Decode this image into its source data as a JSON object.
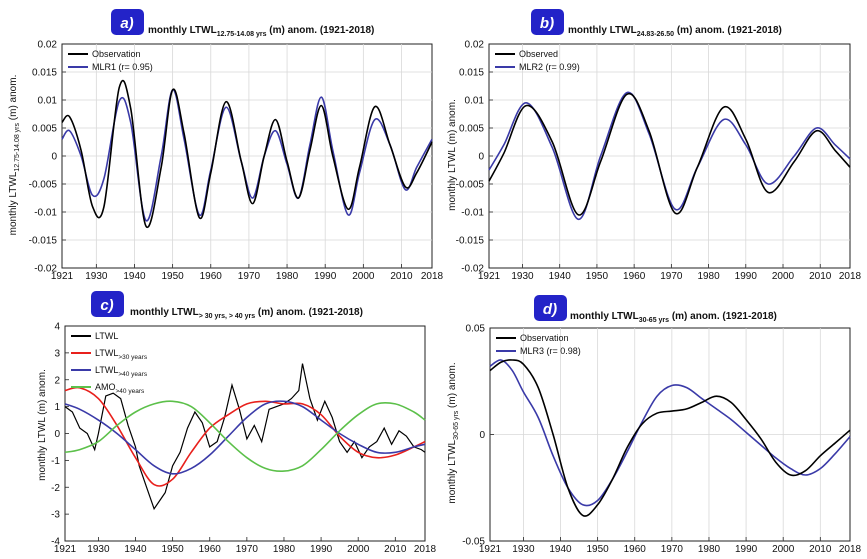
{
  "colors": {
    "black": "#000000",
    "blue": "#3a3aa8",
    "red": "#e8201c",
    "green": "#5cc04a",
    "badge": "#2323c8",
    "grid": "#d8d8d8"
  },
  "panels": [
    {
      "badge": "a)",
      "title_main": "monthly LTWL",
      "title_sub": "12.75-14.08 yrs",
      "title_tail": " (m) anom. (1921-2018)",
      "ylabel": "monthly LTWL",
      "ylabel_sub": "12.75-14.08 yrs",
      "ylabel_tail": " (m) anom."
    },
    {
      "badge": "b)",
      "title_main": "monthly LTWL",
      "title_sub": "24.83-26.50",
      "title_tail": " (m) anom. (1921-2018)",
      "ylabel": "monthly LTWL (m) anom.",
      "ylabel_sub": "",
      "ylabel_tail": ""
    },
    {
      "badge": "c)",
      "title_main": "monthly LTWL",
      "title_sub": "> 30 yrs, > 40 yrs",
      "title_tail": " (m) anom. (1921-2018)",
      "ylabel": "monthly LTWL (m) anom.",
      "ylabel_sub": "",
      "ylabel_tail": ""
    },
    {
      "badge": "d)",
      "title_main": "monthly LTWL",
      "title_sub": "30-65 yrs",
      "title_tail": " (m) anom. (1921-2018)",
      "ylabel": "monthly LTWL",
      "ylabel_sub": "30-65 yrs",
      "ylabel_tail": " (m) anom."
    }
  ],
  "chart_data": [
    {
      "type": "line",
      "xlim": [
        1921,
        2018
      ],
      "xticks": [
        "1921",
        "1930",
        "1940",
        "1950",
        "1960",
        "1970",
        "1980",
        "1990",
        "2000",
        "2010",
        "2018"
      ],
      "ylim": [
        -0.02,
        0.02
      ],
      "yticks": [
        "0.02",
        "0.015",
        "0.01",
        "0.005",
        "0",
        "-0.005",
        "-0.01",
        "-0.015",
        "-0.02"
      ],
      "grid": true,
      "legend_position": "top-left",
      "series": [
        {
          "name": "Observation",
          "color": "black",
          "x": [
            1921,
            1923,
            1926,
            1929,
            1932,
            1936,
            1939,
            1943,
            1947,
            1950,
            1953,
            1957,
            1960,
            1964,
            1968,
            1971,
            1974,
            1977,
            1980,
            1983,
            1986,
            1989,
            1992,
            1996,
            1999,
            2003,
            2007,
            2011,
            2014,
            2018
          ],
          "y": [
            0.006,
            0.007,
            0.001,
            -0.009,
            -0.009,
            0.0122,
            0.0085,
            -0.0125,
            -0.002,
            0.0118,
            0.004,
            -0.011,
            -0.003,
            0.0097,
            -0.001,
            -0.0085,
            0.0,
            0.0065,
            -0.001,
            -0.0075,
            0.001,
            0.009,
            0.0,
            -0.0095,
            -0.002,
            0.0088,
            0.002,
            -0.0055,
            -0.003,
            0.0025
          ]
        },
        {
          "name": "MLR1 (r= 0.95)",
          "color": "blue",
          "x": [
            1921,
            1923,
            1926,
            1929,
            1932,
            1936,
            1939,
            1943,
            1947,
            1950,
            1953,
            1957,
            1960,
            1964,
            1968,
            1971,
            1974,
            1977,
            1980,
            1983,
            1986,
            1989,
            1992,
            1996,
            1999,
            2003,
            2007,
            2011,
            2014,
            2018
          ],
          "y": [
            0.003,
            0.0045,
            0.0,
            -0.007,
            -0.004,
            0.0098,
            0.006,
            -0.0115,
            0.0,
            0.0118,
            0.003,
            -0.0105,
            -0.0025,
            0.0087,
            -0.001,
            -0.0075,
            0.0,
            0.0045,
            -0.0015,
            -0.0075,
            0.002,
            0.0105,
            0.001,
            -0.0105,
            -0.003,
            0.0065,
            0.002,
            -0.006,
            -0.002,
            0.003
          ]
        }
      ]
    },
    {
      "type": "line",
      "xlim": [
        1921,
        2018
      ],
      "xticks": [
        "1921",
        "1930",
        "1940",
        "1950",
        "1960",
        "1970",
        "1980",
        "1990",
        "2000",
        "2010",
        "2018"
      ],
      "ylim": [
        -0.02,
        0.02
      ],
      "yticks": [
        "0.02",
        "0.015",
        "0.01",
        "0.005",
        "0",
        "-0.005",
        "-0.01",
        "-0.015",
        "-0.02"
      ],
      "grid": true,
      "legend_position": "top-left",
      "series": [
        {
          "name": "Observed",
          "color": "black",
          "x": [
            1921,
            1925,
            1931,
            1938,
            1945,
            1951,
            1958,
            1964,
            1971,
            1977,
            1984,
            1990,
            1996,
            2003,
            2009,
            2014,
            2018
          ],
          "y": [
            -0.0045,
            0.0005,
            0.009,
            0.0025,
            -0.0105,
            -0.001,
            0.011,
            0.0045,
            -0.0102,
            -0.002,
            0.0087,
            0.003,
            -0.0065,
            -0.001,
            0.0045,
            0.001,
            -0.002
          ]
        },
        {
          "name": "MLR2 (r= 0.99)",
          "color": "blue",
          "x": [
            1921,
            1925,
            1931,
            1938,
            1945,
            1951,
            1958,
            1964,
            1971,
            1977,
            1984,
            1990,
            1996,
            2003,
            2009,
            2014,
            2018
          ],
          "y": [
            -0.0025,
            0.002,
            0.0095,
            0.0015,
            -0.0113,
            0.0,
            0.0113,
            0.004,
            -0.0095,
            -0.002,
            0.0065,
            0.002,
            -0.005,
            0.0,
            0.005,
            0.002,
            -0.0005
          ]
        }
      ]
    },
    {
      "type": "line",
      "xlim": [
        1921,
        2018
      ],
      "xticks": [
        "1921",
        "1930",
        "1940",
        "1950",
        "1960",
        "1970",
        "1980",
        "1990",
        "2000",
        "2010",
        "2018"
      ],
      "ylim": [
        -4,
        4
      ],
      "yticks": [
        "4",
        "3",
        "2",
        "1",
        "0",
        "-1",
        "-2",
        "-3",
        "-4"
      ],
      "grid": false,
      "legend_position": "top-left",
      "series": [
        {
          "name": "LTWL",
          "color": "black",
          "x": [
            1921,
            1923,
            1925,
            1927,
            1929,
            1930,
            1932,
            1934,
            1936,
            1938,
            1940,
            1941,
            1943,
            1945,
            1947,
            1948,
            1950,
            1952,
            1954,
            1956,
            1958,
            1960,
            1962,
            1964,
            1966,
            1968,
            1970,
            1972,
            1974,
            1976,
            1978,
            1980,
            1982,
            1984,
            1985,
            1987,
            1989,
            1991,
            1993,
            1995,
            1997,
            1999,
            2001,
            2003,
            2005,
            2007,
            2009,
            2011,
            2013,
            2015,
            2017,
            2018
          ],
          "y": [
            1.0,
            0.8,
            0.2,
            0.0,
            -0.6,
            0.0,
            1.4,
            1.5,
            1.3,
            0.3,
            -0.5,
            -1.2,
            -2.0,
            -2.8,
            -2.4,
            -2.2,
            -1.2,
            -0.7,
            0.2,
            0.8,
            0.4,
            -0.5,
            -0.3,
            0.6,
            1.8,
            0.9,
            -0.2,
            0.3,
            -0.3,
            0.9,
            1.0,
            1.1,
            1.3,
            1.6,
            2.6,
            1.3,
            0.5,
            1.2,
            0.6,
            -0.3,
            -0.7,
            -0.3,
            -0.9,
            -0.5,
            -0.3,
            0.2,
            -0.4,
            0.1,
            -0.1,
            -0.5,
            -0.6,
            -0.7
          ]
        },
        {
          "name": "LTWL",
          "sub": ">30 years",
          "color": "red",
          "x": [
            1921,
            1925,
            1930,
            1935,
            1940,
            1945,
            1950,
            1955,
            1960,
            1965,
            1970,
            1975,
            1980,
            1985,
            1990,
            1995,
            2000,
            2005,
            2010,
            2015,
            2018
          ],
          "y": [
            1.6,
            1.7,
            1.3,
            0.3,
            -0.9,
            -1.9,
            -1.7,
            -0.7,
            0.2,
            0.7,
            1.1,
            1.2,
            1.1,
            1.1,
            0.7,
            -0.1,
            -0.7,
            -0.9,
            -0.8,
            -0.5,
            -0.3
          ]
        },
        {
          "name": "LTWL",
          "sub": ">40 years",
          "color": "blue",
          "x": [
            1921,
            1925,
            1930,
            1935,
            1940,
            1945,
            1950,
            1955,
            1960,
            1965,
            1970,
            1975,
            1980,
            1985,
            1990,
            1995,
            2000,
            2005,
            2010,
            2015,
            2018
          ],
          "y": [
            1.1,
            0.9,
            0.5,
            0.0,
            -0.6,
            -1.2,
            -1.5,
            -1.3,
            -0.8,
            -0.1,
            0.6,
            1.1,
            1.2,
            1.0,
            0.5,
            0.0,
            -0.4,
            -0.7,
            -0.7,
            -0.5,
            -0.4
          ]
        },
        {
          "name": "AMO",
          "sub": ">40 years",
          "color": "green",
          "x": [
            1921,
            1925,
            1930,
            1935,
            1940,
            1945,
            1950,
            1955,
            1960,
            1965,
            1970,
            1975,
            1980,
            1985,
            1990,
            1995,
            2000,
            2005,
            2010,
            2015,
            2018
          ],
          "y": [
            -0.7,
            -0.6,
            -0.3,
            0.3,
            0.8,
            1.1,
            1.2,
            1.0,
            0.4,
            -0.3,
            -0.9,
            -1.3,
            -1.4,
            -1.2,
            -0.6,
            0.1,
            0.7,
            1.1,
            1.1,
            0.8,
            0.5
          ]
        }
      ]
    },
    {
      "type": "line",
      "xlim": [
        1921,
        2018
      ],
      "xticks": [
        "1921",
        "1930",
        "1940",
        "1950",
        "1960",
        "1970",
        "1980",
        "1990",
        "2000",
        "2010",
        "2018"
      ],
      "ylim": [
        -0.05,
        0.05
      ],
      "yticks": [
        "0.05",
        "0",
        "-0.05"
      ],
      "grid": true,
      "legend_position": "top-left",
      "series": [
        {
          "name": "Observation",
          "color": "black",
          "x": [
            1921,
            1924,
            1927,
            1930,
            1934,
            1938,
            1942,
            1946,
            1950,
            1954,
            1958,
            1962,
            1966,
            1970,
            1974,
            1978,
            1982,
            1986,
            1990,
            1994,
            1998,
            2002,
            2006,
            2010,
            2014,
            2018
          ],
          "y": [
            0.03,
            0.034,
            0.035,
            0.033,
            0.022,
            0.0,
            -0.025,
            -0.038,
            -0.033,
            -0.021,
            -0.006,
            0.005,
            0.01,
            0.011,
            0.012,
            0.015,
            0.018,
            0.015,
            0.007,
            -0.002,
            -0.013,
            -0.019,
            -0.017,
            -0.01,
            -0.004,
            0.002
          ]
        },
        {
          "name": "MLR3 (r= 0.98)",
          "color": "blue",
          "x": [
            1921,
            1924,
            1927,
            1930,
            1934,
            1938,
            1942,
            1946,
            1950,
            1954,
            1958,
            1962,
            1966,
            1970,
            1974,
            1978,
            1982,
            1986,
            1990,
            1994,
            1998,
            2002,
            2006,
            2010,
            2014,
            2018
          ],
          "y": [
            0.032,
            0.035,
            0.03,
            0.02,
            0.008,
            -0.01,
            -0.025,
            -0.033,
            -0.031,
            -0.021,
            -0.008,
            0.006,
            0.018,
            0.023,
            0.022,
            0.017,
            0.012,
            0.007,
            0.001,
            -0.005,
            -0.011,
            -0.016,
            -0.019,
            -0.016,
            -0.009,
            -0.001
          ]
        }
      ]
    }
  ]
}
